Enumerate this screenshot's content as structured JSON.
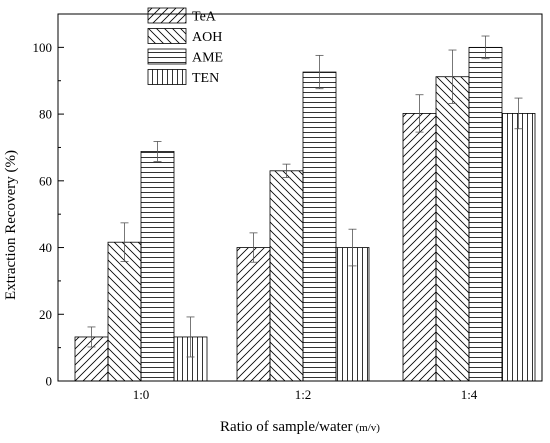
{
  "chart_data": {
    "type": "bar",
    "title": "",
    "xlabel": "Ratio of sample/water",
    "xlabel_unit": "(m/v)",
    "ylabel": "Extraction Recovery (%)",
    "ylim": [
      0,
      110
    ],
    "yticks": [
      0,
      20,
      40,
      60,
      80,
      100
    ],
    "grid": false,
    "legend_position": "top-left",
    "categories": [
      "1:0",
      "1:2",
      "1:4"
    ],
    "series": [
      {
        "name": "TeA",
        "pattern": "diagonal-forward",
        "values": [
          13.2,
          40.0,
          80.2
        ],
        "errors": [
          3.0,
          4.4,
          5.6
        ]
      },
      {
        "name": "AOH",
        "pattern": "diagonal-back",
        "values": [
          41.6,
          63.0,
          91.2
        ],
        "errors": [
          5.8,
          2.0,
          8.0
        ]
      },
      {
        "name": "AME",
        "pattern": "horizontal",
        "values": [
          68.8,
          92.6,
          100.0
        ],
        "errors": [
          3.0,
          5.0,
          3.4
        ]
      },
      {
        "name": "TEN",
        "pattern": "vertical",
        "values": [
          13.2,
          40.0,
          80.2
        ],
        "errors": [
          6.0,
          5.5,
          4.6
        ]
      }
    ],
    "colors": {
      "bar_stroke": "#000000",
      "hatch": "#000000",
      "background": "#ffffff"
    }
  }
}
